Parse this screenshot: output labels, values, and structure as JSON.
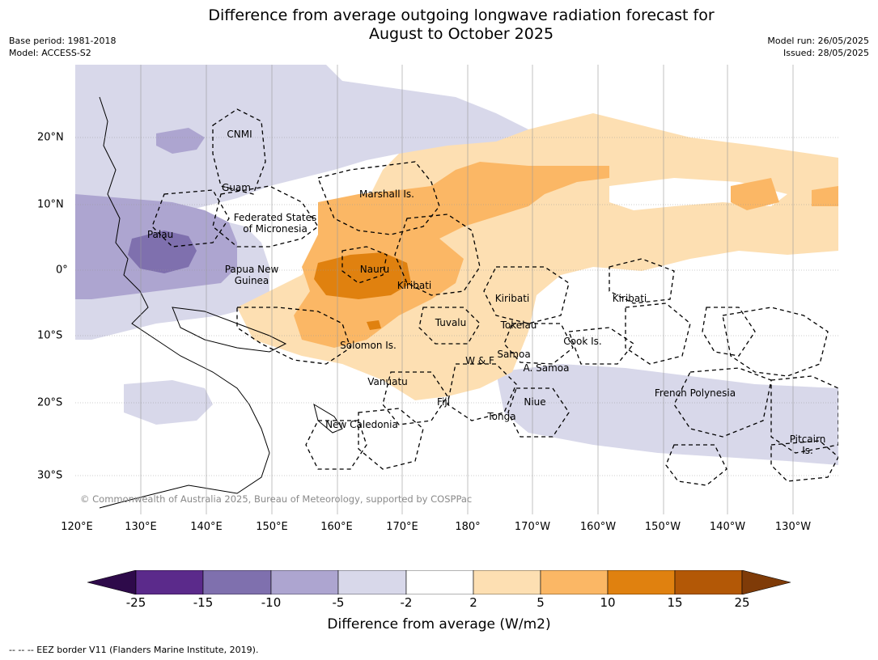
{
  "title_line1": "Difference from average outgoing longwave radiation forecast for",
  "title_line2": "August to October 2025",
  "meta": {
    "base_period": "Base period: 1981-2018",
    "model": "Model: ACCESS-S2",
    "model_run": "Model run: 26/05/2025",
    "issued": "Issued: 28/05/2025"
  },
  "lon_labels": [
    "120°E",
    "130°E",
    "140°E",
    "150°E",
    "160°E",
    "170°E",
    "180°",
    "170°W",
    "160°W",
    "150°W",
    "140°W",
    "130°W"
  ],
  "lat_labels": [
    "20°N",
    "10°N",
    "0°",
    "10°S",
    "20°S",
    "30°S"
  ],
  "places": {
    "cnmi": "CNMI",
    "guam": "Guam",
    "marshall": "Marshall Is.",
    "fsm1": "Federated States",
    "fsm2": "of Micronesia",
    "palau": "Palau",
    "png1": "Papua New",
    "png2": "Guinea",
    "nauru": "Nauru",
    "kiribati_w": "Kiribati",
    "kiribati_c": "Kiribati",
    "kiribati_e": "Kiribati",
    "tuvalu": "Tuvalu",
    "tokelau": "Tokelau",
    "cook": "Cook Is.",
    "solomon": "Solomon Is.",
    "wf": "W & F",
    "samoa": "Samoa",
    "asamoa": "A. Samoa",
    "vanuatu": "Vanuatu",
    "fiji": "Fiji",
    "niue": "Niue",
    "tonga": "Tonga",
    "french_polynesia": "French Polynesia",
    "new_caledonia": "New Caledonia",
    "pitcairn1": "Pitcairn",
    "pitcairn2": "Is."
  },
  "copyright": "© Commonwealth of Australia 2025, Bureau of Meteorology, supported by COSPPac",
  "colorbar": {
    "ticks": [
      "-25",
      "-15",
      "-10",
      "-5",
      "-2",
      "2",
      "5",
      "10",
      "15",
      "25"
    ],
    "colors": [
      "#2e0a4a",
      "#5b2a8b",
      "#7f70ae",
      "#ada5d0",
      "#d8d8ea",
      "#ffffff",
      "#fddfb2",
      "#fbb765",
      "#e0810f",
      "#b35806",
      "#7f3b08"
    ],
    "label": "Difference from average (W/m2)"
  },
  "footer": "--  --  -- EEZ border V11 (Flanders Marine Institute, 2019)."
}
